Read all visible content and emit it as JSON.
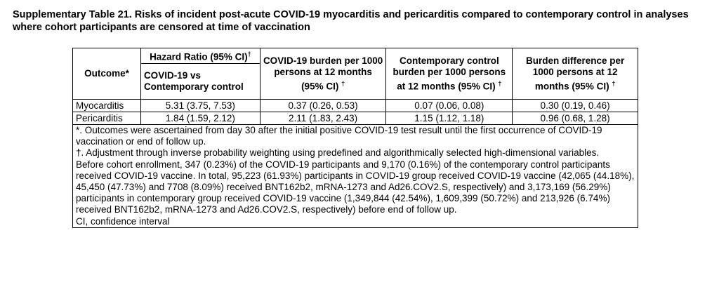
{
  "caption": "Supplementary Table 21. Risks of incident post-acute COVID-19 myocarditis and pericarditis compared to contemporary control in analyses where cohort participants are censored at time of vaccination",
  "table": {
    "headers": {
      "outcome": "Outcome*",
      "hazard_ratio": "Hazard Ratio (95% CI)",
      "hazard_ratio_mark": "†",
      "hazard_ratio_sub": "COVID-19 vs Contemporary control",
      "covid_burden": "COVID-19 burden per 1000 persons at 12 months (95% CI)",
      "covid_burden_mark": "†",
      "control_burden": "Contemporary control burden per 1000 persons at 12 months (95% CI)",
      "control_burden_mark": "†",
      "burden_diff": "Burden difference per 1000 persons at 12 months (95% CI)",
      "burden_diff_mark": "†"
    },
    "rows": [
      {
        "outcome": "Myocarditis",
        "hr": "5.31 (3.75, 7.53)",
        "covid": "0.37 (0.26, 0.53)",
        "control": "0.07 (0.06, 0.08)",
        "diff": "0.30 (0.19, 0.46)"
      },
      {
        "outcome": "Pericarditis",
        "hr": "1.84 (1.59, 2.12)",
        "covid": "2.11 (1.83, 2.43)",
        "control": "1.15 (1.12, 1.18)",
        "diff": "0.96 (0.68, 1.28)"
      }
    ],
    "notes": [
      "*. Outcomes were ascertained from day 30 after the initial positive COVID-19 test result until the first occurrence of COVID-19 vaccination or end of follow up.",
      "†. Adjustment through inverse probability weighting using predefined and algorithmically selected high-dimensional variables.",
      "Before cohort enrollment, 347 (0.23%) of the COVID-19 participants and 9,170 (0.16%) of the contemporary control participants received COVID-19 vaccine. In total, 95,223 (61.93%) participants in COVID-19 group received COVID-19 vaccine (42,065 (44.18%), 45,450 (47.73%) and 7708 (8.09%) received BNT162b2, mRNA-1273 and Ad26.COV2.S, respectively) and 3,173,169 (56.29%) participants in contemporary group received COVID-19 vaccine (1,349,844 (42.54%), 1,609,399 (50.72%) and 213,926 (6.74%) received BNT162b2, mRNA-1273 and Ad26.COV2.S, respectively) before end of follow up.",
      "CI, confidence interval"
    ]
  }
}
